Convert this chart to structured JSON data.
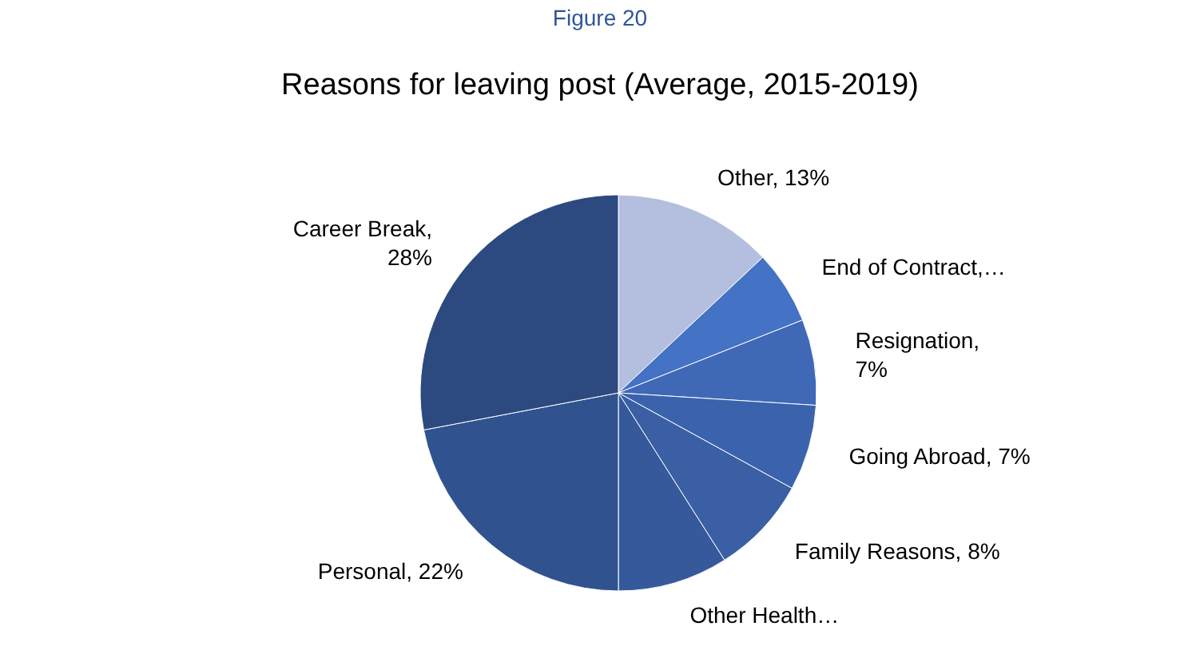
{
  "chart_data": {
    "type": "pie",
    "title": "Reasons for leaving post (Average, 2015-2019)",
    "annotations": [
      "Figure 20"
    ],
    "categories": [
      "Other, 13%",
      "End of Contract,…",
      "Resignation, 7%",
      "Going Abroad, 7%",
      "Family Reasons, 8%",
      "Other Health…",
      "Personal, 22%",
      "Career Break, 28%"
    ],
    "values": [
      13,
      6,
      7,
      7,
      8,
      9,
      22,
      28
    ],
    "colors": [
      "#b4bfdf",
      "#4472c4",
      "#3f69b7",
      "#3b63ad",
      "#3a5fa5",
      "#36599c",
      "#30528f",
      "#2c4a7f"
    ]
  }
}
